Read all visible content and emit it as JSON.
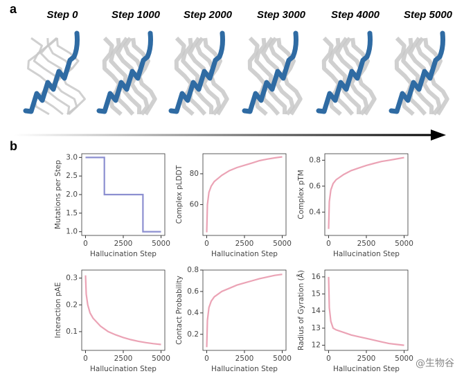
{
  "panel_labels": [
    "a",
    "b"
  ],
  "steps": [
    "Step 0",
    "Step 1000",
    "Step 2000",
    "Step 3000",
    "Step 4000",
    "Step 5000"
  ],
  "watermark": "@生物谷",
  "chart_data": [
    {
      "type": "line",
      "xlabel": "Hallucination Step",
      "ylabel": "Mutations per Step",
      "x": [
        0,
        1250,
        1250,
        3800,
        3800,
        5000
      ],
      "series": [
        {
          "color": "#8c8fd0",
          "values": [
            3,
            3,
            2,
            2,
            1,
            1
          ]
        }
      ],
      "xlim": [
        -250,
        5250
      ],
      "xticks": [
        0,
        2500,
        5000
      ],
      "ylim": [
        0.9,
        3.1
      ],
      "yticks": [
        {
          "value": 1,
          "label": "1.0"
        },
        1.5,
        {
          "value": 2,
          "label": "2.0"
        },
        2.5,
        {
          "value": 3,
          "label": "3.0"
        }
      ]
    },
    {
      "type": "line",
      "xlabel": "Hallucination Step",
      "ylabel": "Complex pLDDT",
      "x": [
        0,
        50,
        150,
        300,
        500,
        1000,
        1500,
        2000,
        2500,
        3000,
        3500,
        4000,
        4500,
        5000
      ],
      "series": [
        {
          "color": "#eba3b5",
          "values": [
            42,
            60,
            68,
            72,
            75,
            79,
            82,
            84,
            85.5,
            87,
            88.5,
            89.5,
            90.3,
            91
          ]
        }
      ],
      "xlim": [
        -250,
        5250
      ],
      "xticks": [
        0,
        2500,
        5000
      ],
      "ylim": [
        40,
        93
      ],
      "yticks": [
        60,
        80
      ]
    },
    {
      "type": "line",
      "xlabel": "Hallucination Step",
      "ylabel": "Complex pTM",
      "x": [
        0,
        50,
        150,
        300,
        500,
        1000,
        1500,
        2000,
        2500,
        3000,
        3500,
        4000,
        4500,
        5000
      ],
      "series": [
        {
          "color": "#eba3b5",
          "values": [
            0.27,
            0.48,
            0.57,
            0.62,
            0.65,
            0.69,
            0.72,
            0.74,
            0.76,
            0.775,
            0.79,
            0.8,
            0.81,
            0.82
          ]
        }
      ],
      "xlim": [
        -250,
        5250
      ],
      "xticks": [
        0,
        2500,
        5000
      ],
      "ylim": [
        0.22,
        0.85
      ],
      "yticks": [
        0.4,
        0.6,
        0.8
      ]
    },
    {
      "type": "line",
      "xlabel": "Hallucination Step",
      "ylabel": "Interaction pAE",
      "x": [
        0,
        50,
        150,
        300,
        500,
        1000,
        1500,
        2000,
        2500,
        3000,
        3500,
        4000,
        4500,
        5000
      ],
      "series": [
        {
          "color": "#eba3b5",
          "values": [
            0.31,
            0.24,
            0.2,
            0.17,
            0.15,
            0.12,
            0.1,
            0.088,
            0.078,
            0.07,
            0.064,
            0.059,
            0.055,
            0.052
          ]
        }
      ],
      "xlim": [
        -250,
        5250
      ],
      "xticks": [
        0,
        2500,
        5000
      ],
      "ylim": [
        0.03,
        0.33
      ],
      "yticks": [
        0.1,
        0.2,
        0.3
      ]
    },
    {
      "type": "line",
      "xlabel": "Hallucination Step",
      "ylabel": "Contact Probability",
      "x": [
        0,
        50,
        150,
        300,
        500,
        1000,
        1500,
        2000,
        2500,
        3000,
        3500,
        4000,
        4500,
        5000
      ],
      "series": [
        {
          "color": "#eba3b5",
          "values": [
            0.08,
            0.33,
            0.45,
            0.51,
            0.55,
            0.6,
            0.63,
            0.66,
            0.68,
            0.7,
            0.72,
            0.735,
            0.75,
            0.76
          ]
        }
      ],
      "xlim": [
        -250,
        5250
      ],
      "xticks": [
        0,
        2500,
        5000
      ],
      "ylim": [
        0.05,
        0.8
      ],
      "yticks": [
        0.2,
        0.4,
        0.6,
        0.8
      ]
    },
    {
      "type": "line",
      "xlabel": "Hallucination Step",
      "ylabel": "Radius of Gyration (Å)",
      "x": [
        0,
        50,
        150,
        300,
        500,
        1000,
        1500,
        2000,
        2500,
        3000,
        3500,
        4000,
        4500,
        5000
      ],
      "series": [
        {
          "color": "#eba3b5",
          "values": [
            16,
            14.2,
            13.4,
            13,
            12.9,
            12.75,
            12.6,
            12.5,
            12.4,
            12.3,
            12.2,
            12.1,
            12.05,
            12
          ]
        }
      ],
      "xlim": [
        -250,
        5250
      ],
      "xticks": [
        0,
        2500,
        5000
      ],
      "ylim": [
        11.7,
        16.4
      ],
      "yticks": [
        12,
        13,
        14,
        15,
        16
      ]
    }
  ]
}
